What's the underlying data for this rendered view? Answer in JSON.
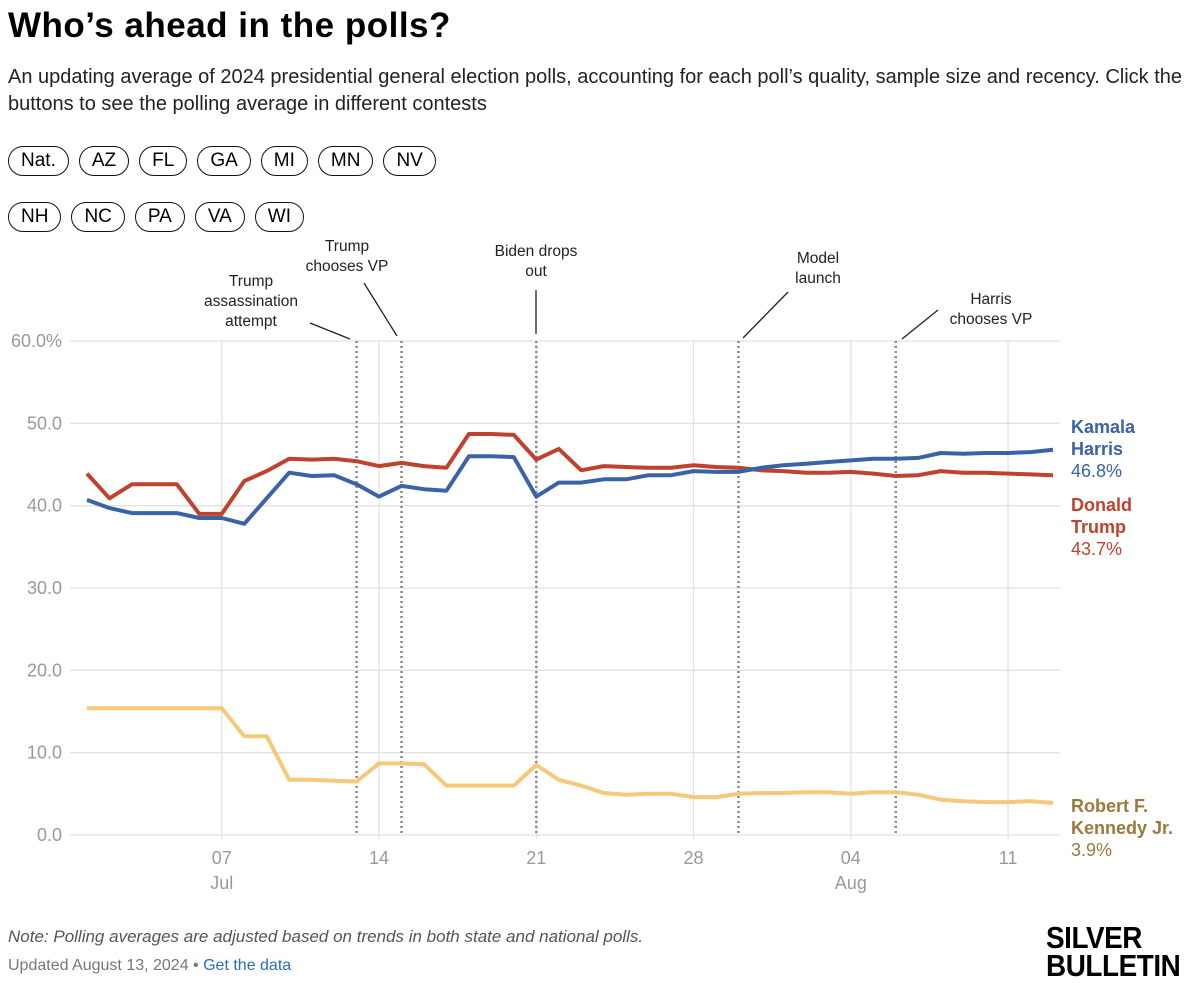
{
  "header": {
    "title": "Who’s ahead in the polls?",
    "subtitle": "An updating average of 2024 presidential general election polls, accounting for each poll’s quality, sample size and recency. Click the buttons to see the polling average in different contests"
  },
  "buttons": [
    [
      "Nat.",
      "AZ",
      "FL",
      "GA",
      "MI",
      "MN",
      "NV"
    ],
    [
      "NH",
      "NC",
      "PA",
      "VA",
      "WI"
    ]
  ],
  "chart_data": {
    "type": "line",
    "x": [
      "07-01",
      "07-02",
      "07-03",
      "07-04",
      "07-05",
      "07-06",
      "07-07",
      "07-08",
      "07-09",
      "07-10",
      "07-11",
      "07-12",
      "07-13",
      "07-14",
      "07-15",
      "07-16",
      "07-17",
      "07-18",
      "07-19",
      "07-20",
      "07-21",
      "07-22",
      "07-23",
      "07-24",
      "07-25",
      "07-26",
      "07-27",
      "07-28",
      "07-29",
      "07-30",
      "07-31",
      "08-01",
      "08-02",
      "08-03",
      "08-04",
      "08-05",
      "08-06",
      "08-07",
      "08-08",
      "08-09",
      "08-10",
      "08-11",
      "08-12",
      "08-13"
    ],
    "xlim": [
      "07-01",
      "08-13"
    ],
    "xticks": [
      {
        "value": "07-07",
        "label": "07"
      },
      {
        "value": "07-14",
        "label": "14"
      },
      {
        "value": "07-21",
        "label": "21"
      },
      {
        "value": "07-28",
        "label": "28"
      },
      {
        "value": "08-04",
        "label": "04"
      },
      {
        "value": "08-11",
        "label": "11"
      }
    ],
    "xtick_months": [
      {
        "value": "07-07",
        "label": "Jul"
      },
      {
        "value": "08-04",
        "label": "Aug"
      }
    ],
    "ylim": [
      0,
      60
    ],
    "yticks": [
      {
        "value": 0,
        "label": "0.0"
      },
      {
        "value": 10,
        "label": "10.0"
      },
      {
        "value": 20,
        "label": "20.0"
      },
      {
        "value": 30,
        "label": "30.0"
      },
      {
        "value": 40,
        "label": "40.0"
      },
      {
        "value": 50,
        "label": "50.0"
      },
      {
        "value": 60,
        "label": "60.0%"
      }
    ],
    "grid": true,
    "series": [
      {
        "name": "Kamala Harris",
        "color": "#3a62a6",
        "label_color": "#3a62a6",
        "end_label": "46.8%",
        "values": [
          40.7,
          39.7,
          39.1,
          39.1,
          39.1,
          38.5,
          38.5,
          37.8,
          40.9,
          44.0,
          43.6,
          43.7,
          42.6,
          41.1,
          42.4,
          42.0,
          41.8,
          46.0,
          46.0,
          45.9,
          41.1,
          42.8,
          42.8,
          43.2,
          43.2,
          43.7,
          43.7,
          44.2,
          44.1,
          44.1,
          44.6,
          44.9,
          45.1,
          45.3,
          45.5,
          45.7,
          45.7,
          45.8,
          46.4,
          46.3,
          46.4,
          46.4,
          46.5,
          46.8
        ]
      },
      {
        "name": "Donald Trump",
        "color": "#c0422e",
        "label_color": "#c0422e",
        "end_label": "43.7%",
        "values": [
          43.9,
          40.9,
          42.6,
          42.6,
          42.6,
          39.0,
          39.0,
          43.0,
          44.2,
          45.7,
          45.6,
          45.7,
          45.4,
          44.8,
          45.2,
          44.8,
          44.6,
          48.7,
          48.7,
          48.6,
          45.6,
          46.9,
          44.3,
          44.8,
          44.7,
          44.6,
          44.6,
          44.9,
          44.7,
          44.6,
          44.3,
          44.2,
          44.0,
          44.0,
          44.1,
          43.9,
          43.6,
          43.7,
          44.2,
          44.0,
          44.0,
          43.9,
          43.8,
          43.7
        ]
      },
      {
        "name": "Robert F. Kennedy Jr.",
        "color": "#f5c87a",
        "label_color": "#9a7a3a",
        "end_label": "3.9%",
        "values": [
          15.4,
          15.4,
          15.4,
          15.4,
          15.4,
          15.4,
          15.4,
          12.0,
          12.0,
          6.7,
          6.7,
          6.6,
          6.5,
          8.7,
          8.7,
          8.6,
          6.0,
          6.0,
          6.0,
          6.0,
          8.5,
          6.7,
          6.0,
          5.1,
          4.9,
          5.0,
          5.0,
          4.6,
          4.6,
          5.0,
          5.1,
          5.1,
          5.2,
          5.2,
          5.0,
          5.2,
          5.2,
          4.9,
          4.3,
          4.1,
          4.0,
          4.0,
          4.1,
          3.9
        ]
      }
    ],
    "annotations": [
      {
        "x": "07-13",
        "lines": [
          "Trump",
          "assassination",
          "attempt"
        ]
      },
      {
        "x": "07-15",
        "lines": [
          "Trump",
          "chooses VP"
        ]
      },
      {
        "x": "07-21",
        "lines": [
          "Biden drops",
          "out"
        ]
      },
      {
        "x": "07-30",
        "lines": [
          "Model",
          "launch"
        ]
      },
      {
        "x": "08-06",
        "lines": [
          "Harris",
          "chooses VP"
        ]
      }
    ]
  },
  "footer": {
    "note": "Note: Polling averages are adjusted based on trends in both state and national polls.",
    "updated": "Updated August 13, 2024",
    "separator": "•",
    "link": "Get the data",
    "logo": [
      "SILVER",
      "BULLETIN"
    ]
  }
}
